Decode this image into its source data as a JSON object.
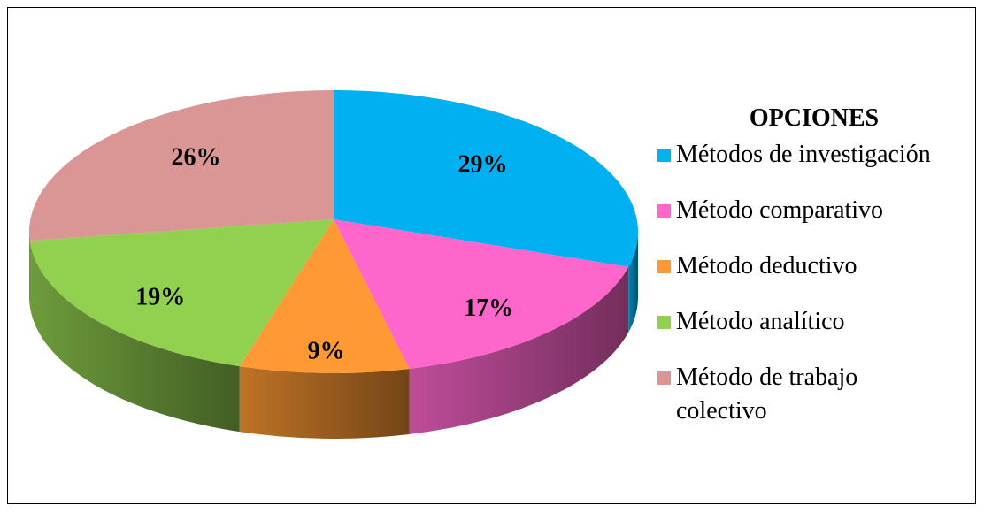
{
  "chart_data": {
    "type": "pie3d",
    "legend_title": "OPCIONES",
    "categories": [
      "Métodos de investigación",
      "Método comparativo",
      "Método deductivo",
      "Método analítico",
      "Método de trabajo colectivo"
    ],
    "values": [
      29,
      17,
      9,
      19,
      26
    ],
    "value_labels": [
      "29%",
      "17%",
      "9%",
      "19%",
      "26%"
    ],
    "colors": [
      "#00b0f0",
      "#ff66cc",
      "#ff9933",
      "#92d050",
      "#d99694"
    ],
    "legend": "right"
  }
}
